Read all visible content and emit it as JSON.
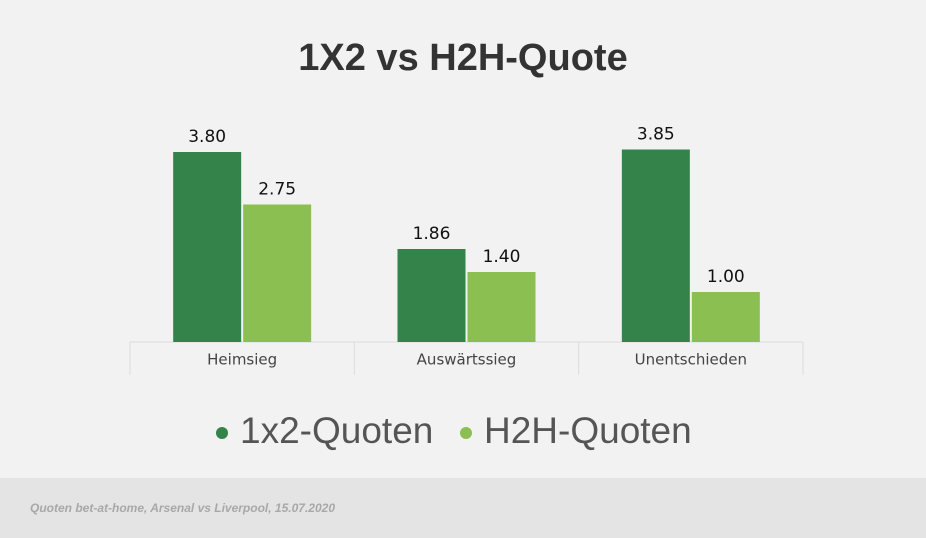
{
  "chart_data": {
    "type": "bar",
    "title": "1X2 vs H2H-Quote",
    "categories": [
      "Heimsieg",
      "Auswärtssieg",
      "Unentschieden"
    ],
    "series": [
      {
        "name": "1x2-Quoten",
        "color": "#34834a",
        "values": [
          3.8,
          1.86,
          3.85
        ],
        "value_labels": [
          "3.80",
          "1.86",
          "3.85"
        ]
      },
      {
        "name": "H2H-Quoten",
        "color": "#8bbf52",
        "values": [
          2.75,
          1.4,
          1.0
        ],
        "value_labels": [
          "2.75",
          "1.40",
          "1.00"
        ]
      }
    ],
    "source": "Quoten bet-at-home, Arsenal vs Liverpool, 15.07.2020"
  }
}
